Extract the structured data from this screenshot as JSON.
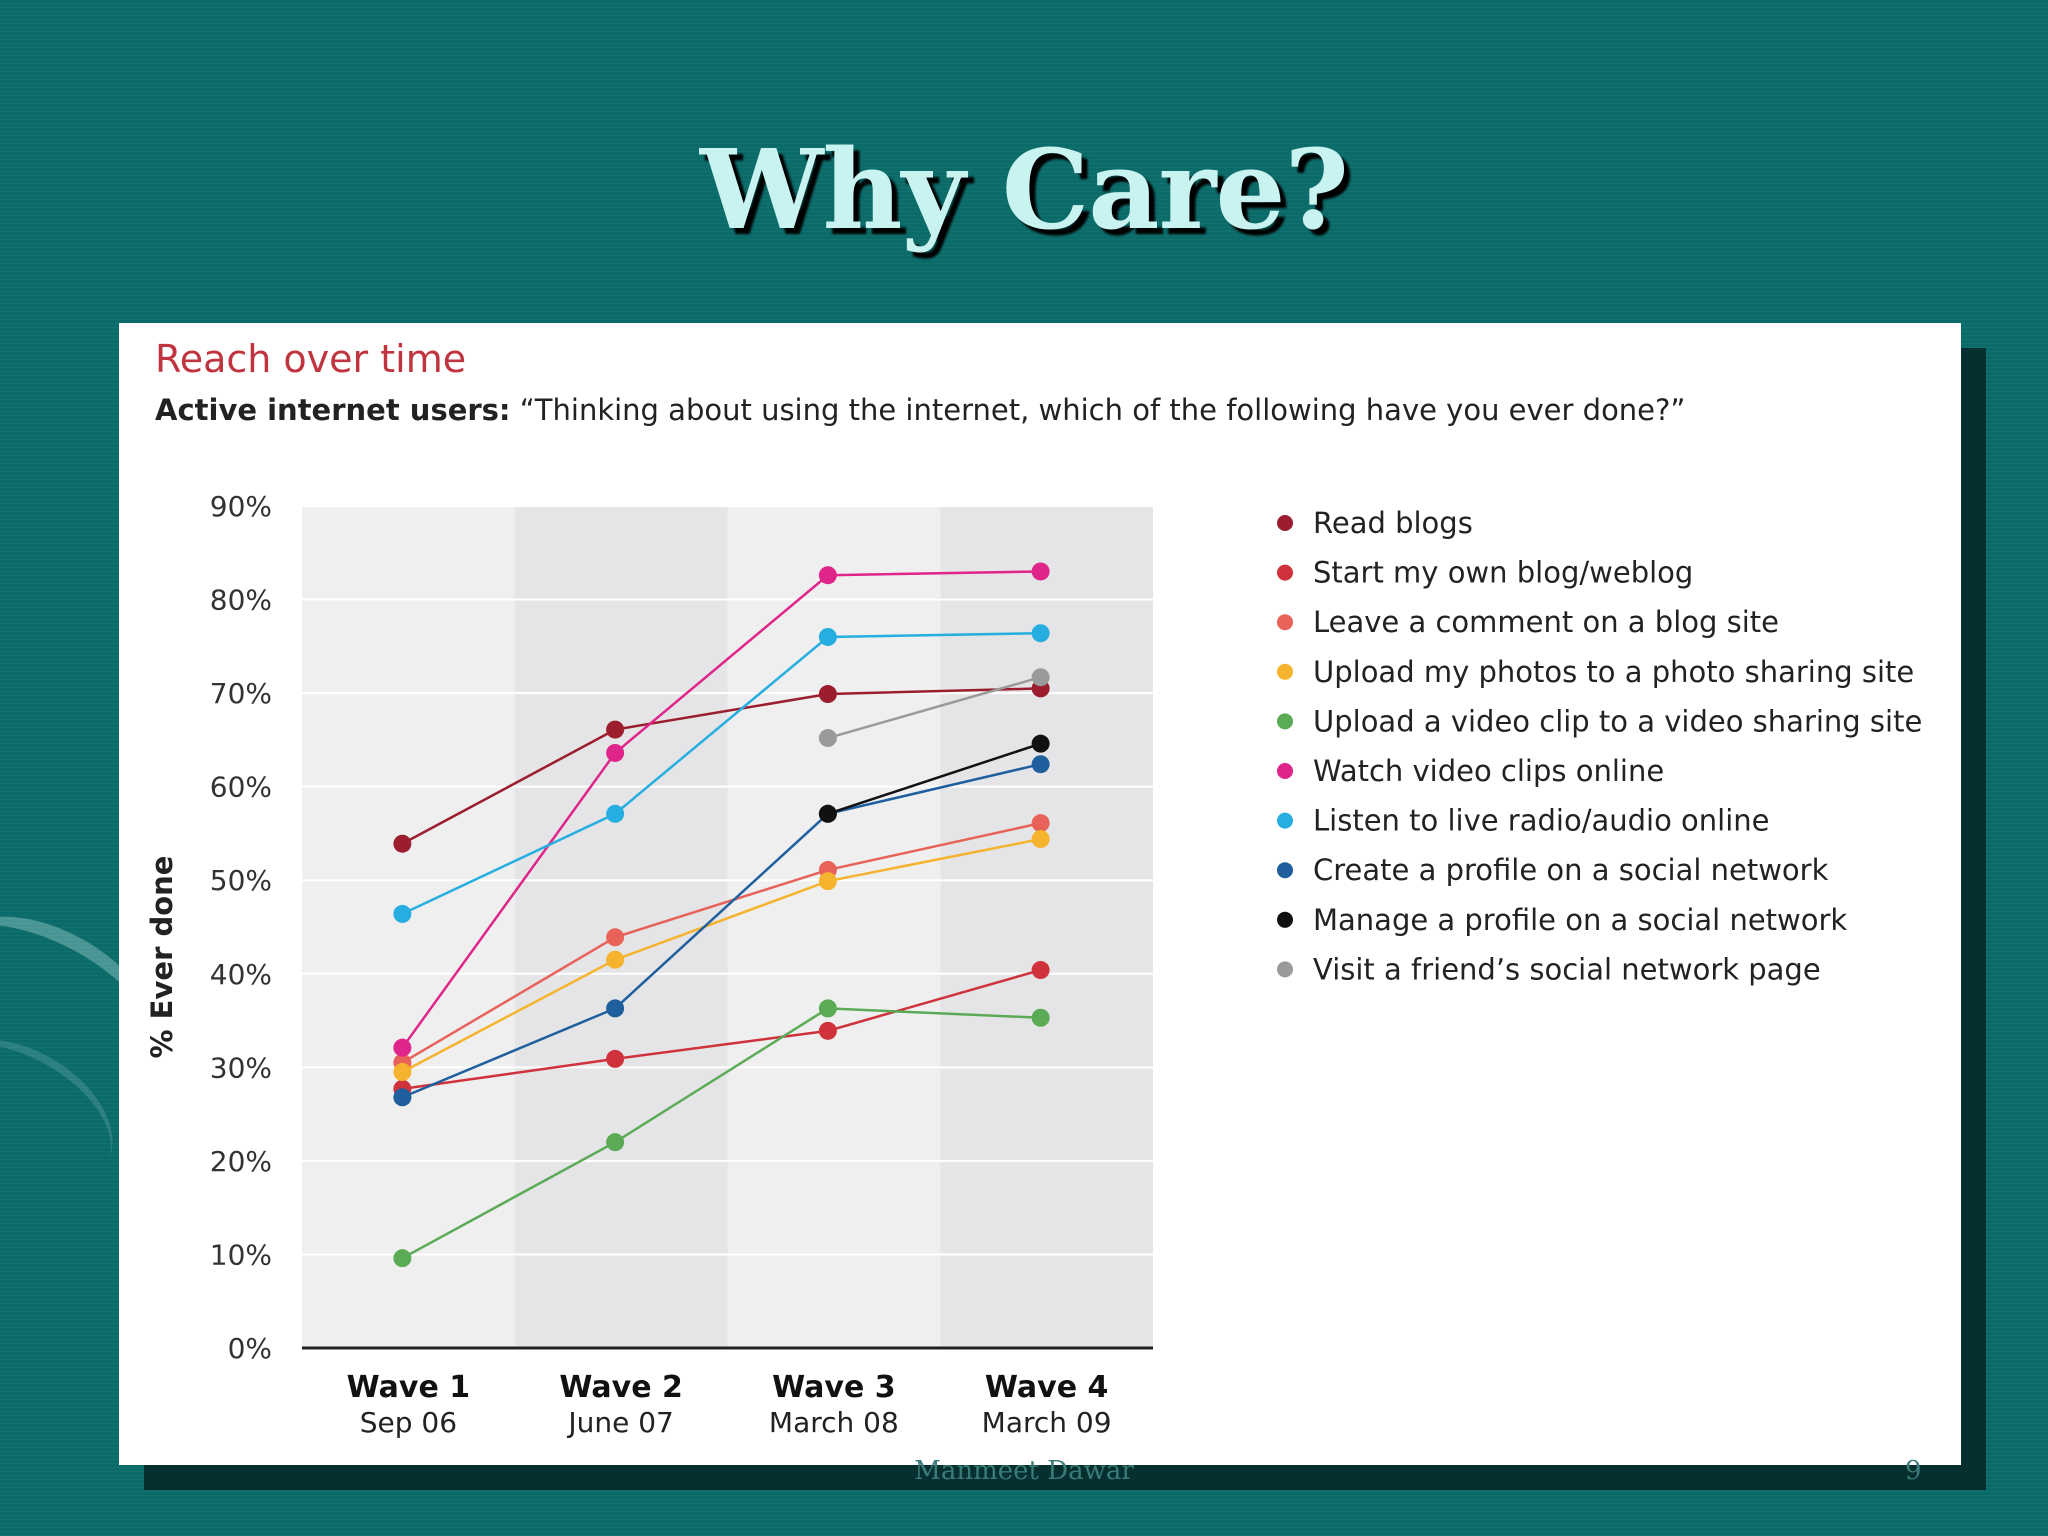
{
  "slide": {
    "title": "Why Care?",
    "footer": "Manmeet Dawar",
    "page_number": "9"
  },
  "chart_data": {
    "type": "line",
    "title": "Reach over time",
    "subtitle_bold": "Active internet users:",
    "subtitle_rest": " “Thinking about using the internet, which of the following have you ever done?”",
    "ylabel": "% Ever done",
    "ylim": [
      0,
      90
    ],
    "yticks": [
      "0%",
      "10%",
      "20%",
      "30%",
      "40%",
      "50%",
      "60%",
      "70%",
      "80%",
      "90%"
    ],
    "grid": true,
    "legend_position": "right",
    "categories": [
      {
        "name": "Wave 1",
        "date": "Sep 06"
      },
      {
        "name": "Wave 2",
        "date": "June 07"
      },
      {
        "name": "Wave 3",
        "date": "March 08"
      },
      {
        "name": "Wave 4",
        "date": "March 09"
      }
    ],
    "series": [
      {
        "name": "Read blogs",
        "color": "#9b1d2e",
        "values": [
          53.9,
          66.1,
          69.9,
          70.5
        ]
      },
      {
        "name": "Start my own blog/weblog",
        "color": "#d0323b",
        "values": [
          27.7,
          30.9,
          33.9,
          40.4
        ]
      },
      {
        "name": "Leave a comment on a blog site",
        "color": "#e8625a",
        "values": [
          30.5,
          43.9,
          51.1,
          56.1
        ]
      },
      {
        "name": "Upload my photos to a photo sharing site",
        "color": "#f5b32e",
        "values": [
          29.5,
          41.5,
          49.9,
          54.4
        ]
      },
      {
        "name": "Upload a video clip to a video sharing site",
        "color": "#5aaa56",
        "values": [
          9.6,
          22.0,
          36.3,
          35.3
        ]
      },
      {
        "name": "Watch video clips online",
        "color": "#e0258a",
        "values": [
          32.1,
          63.6,
          82.6,
          83.0
        ]
      },
      {
        "name": "Listen to live radio/audio online",
        "color": "#27aee0",
        "values": [
          46.4,
          57.1,
          76.0,
          76.4
        ]
      },
      {
        "name": "Create a profile on a social network",
        "color": "#1f5f9e",
        "values": [
          26.8,
          36.3,
          57.1,
          62.4
        ]
      },
      {
        "name": "Manage a profile on a social network",
        "color": "#111111",
        "values": [
          null,
          null,
          57.1,
          64.6
        ]
      },
      {
        "name": "Visit a friend’s social network page",
        "color": "#9a9a9a",
        "values": [
          null,
          null,
          65.2,
          71.7
        ]
      }
    ]
  }
}
